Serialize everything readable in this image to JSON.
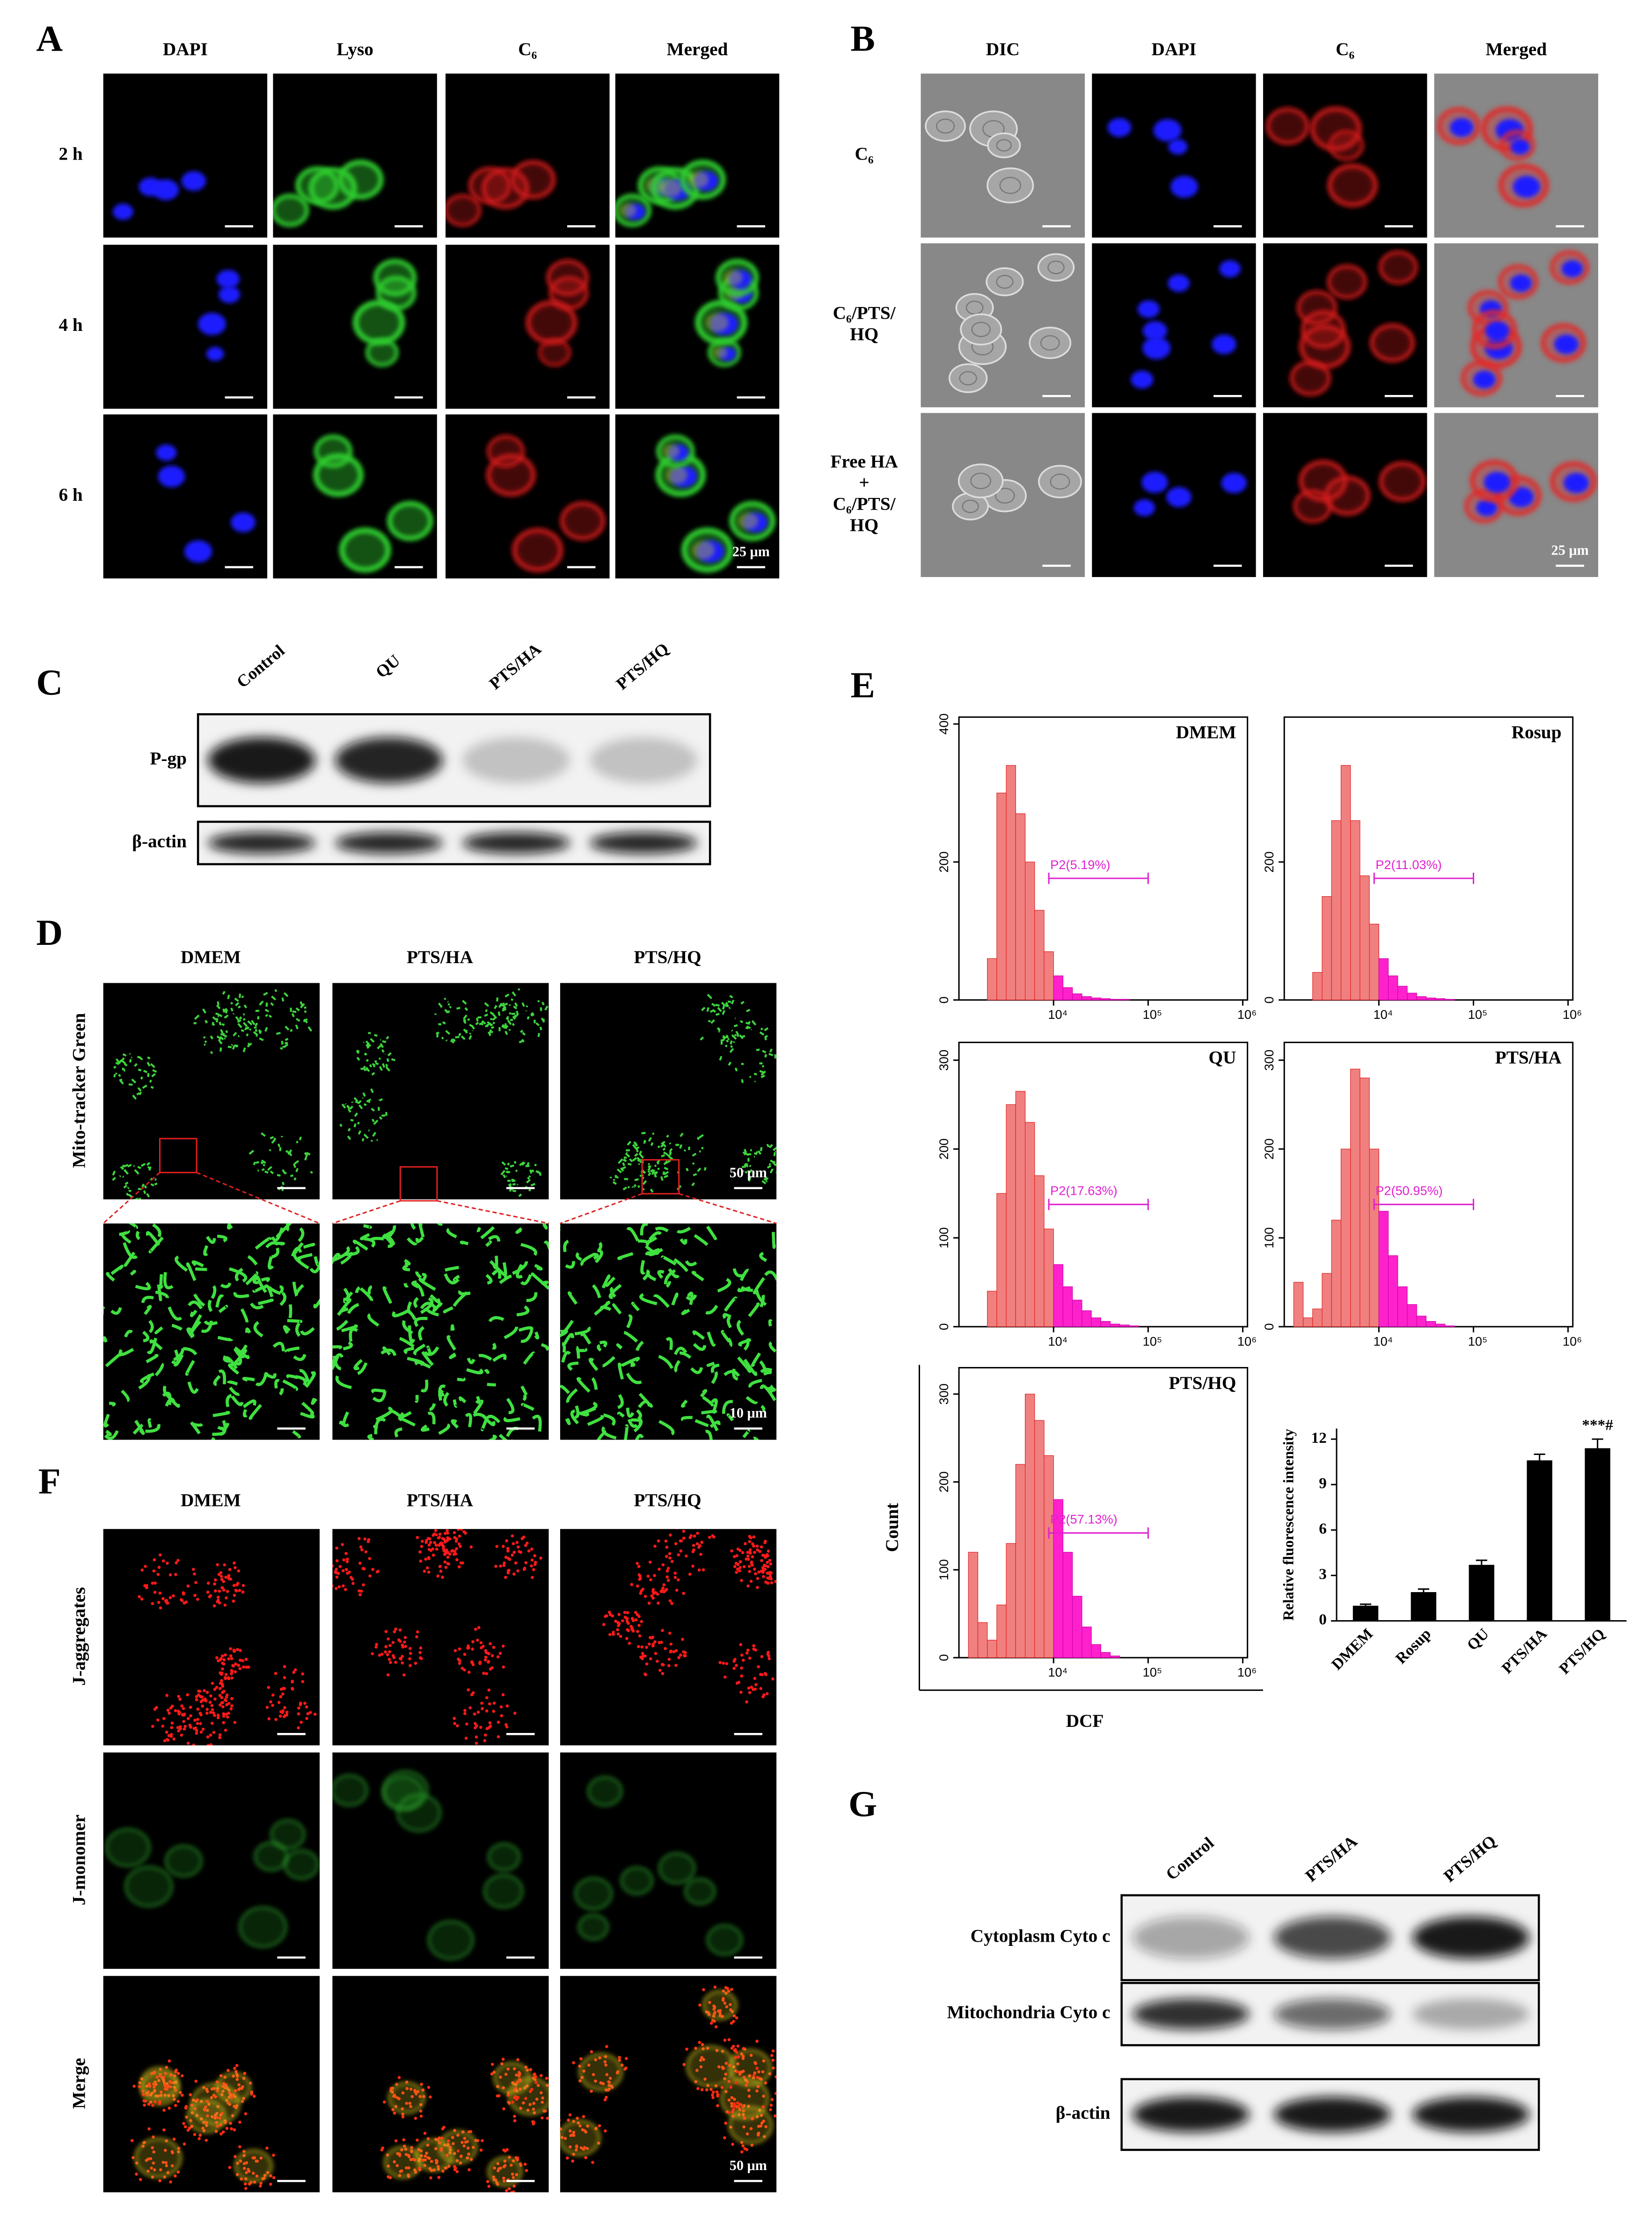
{
  "panel_a": {
    "letter": "A",
    "columns": [
      "DAPI",
      "Lyso",
      "C₆",
      "Merged"
    ],
    "rows": [
      "2 h",
      "4 h",
      "6 h"
    ],
    "scale_bar": "25 μm"
  },
  "panel_b": {
    "letter": "B",
    "columns": [
      "DIC",
      "DAPI",
      "C₆",
      "Merged"
    ],
    "rows": [
      [
        "C₆"
      ],
      [
        "C₆/PTS/",
        "HQ"
      ],
      [
        "Free HA",
        "+",
        "C₆/PTS/",
        "HQ"
      ]
    ],
    "scale_bar": "25 μm"
  },
  "panel_c": {
    "letter": "C",
    "lanes": [
      "Control",
      "QU",
      "PTS/HA",
      "PTS/HQ"
    ],
    "blots": [
      "P-gp",
      "β-actin"
    ]
  },
  "panel_d": {
    "letter": "D",
    "columns": [
      "DMEM",
      "PTS/HA",
      "PTS/HQ"
    ],
    "row_label": "Mito-tracker Green",
    "scale_bars": [
      "50 μm",
      "10 μm"
    ]
  },
  "panel_e": {
    "letter": "E"
  },
  "panel_f": {
    "letter": "F",
    "columns": [
      "DMEM",
      "PTS/HA",
      "PTS/HQ"
    ],
    "rows": [
      "J-aggregates",
      "J-monomer",
      "Merge"
    ],
    "scale_bar": "50 μm"
  },
  "panel_g": {
    "letter": "G",
    "lanes": [
      "Control",
      "PTS/HA",
      "PTS/HQ"
    ],
    "blots": [
      "Cytoplasm Cyto c",
      "Mitochondria Cyto c",
      "β-actin"
    ]
  },
  "chart_data": [
    {
      "type": "histogram",
      "title": "DMEM",
      "color": "#f08080",
      "gate_color": "#ff22cc",
      "bins": [
        3.0,
        3.1,
        3.2,
        3.3,
        3.4,
        3.5,
        3.6,
        3.7,
        3.8,
        3.9,
        4.0,
        4.1,
        4.2,
        4.3,
        4.4,
        4.5,
        4.6,
        4.7,
        4.8,
        4.9,
        5.0
      ],
      "values": [
        0,
        0,
        0,
        60,
        300,
        340,
        270,
        200,
        130,
        70,
        35,
        18,
        9,
        5,
        3,
        2,
        1,
        1,
        0,
        0
      ],
      "gate": {
        "range": [
          3.95,
          5.0
        ],
        "label": "P2(5.19%)"
      },
      "xlim": [
        3.0,
        6.05
      ],
      "xticks": [
        {
          "value": 4,
          "label": "10⁴"
        },
        {
          "value": 5,
          "label": "10⁵"
        },
        {
          "value": 6,
          "label": "10⁶"
        }
      ],
      "ylim": [
        0,
        410
      ],
      "yticks": [
        0,
        200,
        400
      ]
    },
    {
      "type": "histogram",
      "title": "Rosup",
      "color": "#f08080",
      "gate_color": "#ff22cc",
      "bins": [
        3.0,
        3.1,
        3.2,
        3.3,
        3.4,
        3.5,
        3.6,
        3.7,
        3.8,
        3.9,
        4.0,
        4.1,
        4.2,
        4.3,
        4.4,
        4.5,
        4.6,
        4.7,
        4.8,
        4.9,
        5.0
      ],
      "values": [
        0,
        0,
        0,
        40,
        150,
        260,
        340,
        260,
        180,
        110,
        60,
        35,
        20,
        10,
        5,
        3,
        2,
        1,
        0,
        0
      ],
      "gate": {
        "range": [
          3.95,
          5.0
        ],
        "label": "P2(11.03%)"
      },
      "xlim": [
        3.0,
        6.05
      ],
      "xticks": [
        {
          "value": 4,
          "label": "10⁴"
        },
        {
          "value": 5,
          "label": "10⁵"
        },
        {
          "value": 6,
          "label": "10⁶"
        }
      ],
      "ylim": [
        0,
        410
      ],
      "yticks": [
        0,
        200
      ]
    },
    {
      "type": "histogram",
      "title": "QU",
      "color": "#f08080",
      "gate_color": "#ff22cc",
      "bins": [
        3.0,
        3.1,
        3.2,
        3.3,
        3.4,
        3.5,
        3.6,
        3.7,
        3.8,
        3.9,
        4.0,
        4.1,
        4.2,
        4.3,
        4.4,
        4.5,
        4.6,
        4.7,
        4.8,
        4.9,
        5.0
      ],
      "values": [
        0,
        0,
        0,
        40,
        150,
        250,
        265,
        230,
        170,
        110,
        70,
        45,
        30,
        18,
        10,
        6,
        3,
        2,
        1,
        0
      ],
      "gate": {
        "range": [
          3.95,
          5.0
        ],
        "label": "P2(17.63%)"
      },
      "xlim": [
        3.0,
        6.05
      ],
      "xticks": [
        {
          "value": 4,
          "label": "10⁴"
        },
        {
          "value": 5,
          "label": "10⁵"
        },
        {
          "value": 6,
          "label": "10⁶"
        }
      ],
      "ylim": [
        0,
        320
      ],
      "yticks": [
        0,
        100,
        200,
        300
      ]
    },
    {
      "type": "histogram",
      "title": "PTS/HA",
      "color": "#f08080",
      "gate_color": "#ff22cc",
      "bins": [
        3.0,
        3.1,
        3.2,
        3.3,
        3.4,
        3.5,
        3.6,
        3.7,
        3.8,
        3.9,
        4.0,
        4.1,
        4.2,
        4.3,
        4.4,
        4.5,
        4.6,
        4.7,
        4.8,
        4.9,
        5.0
      ],
      "values": [
        0,
        50,
        10,
        20,
        60,
        120,
        200,
        290,
        280,
        200,
        130,
        80,
        45,
        25,
        12,
        6,
        3,
        1,
        0,
        0
      ],
      "gate": {
        "range": [
          3.95,
          5.0
        ],
        "label": "P2(50.95%)"
      },
      "xlim": [
        3.0,
        6.05
      ],
      "xticks": [
        {
          "value": 4,
          "label": "10⁴"
        },
        {
          "value": 5,
          "label": "10⁵"
        },
        {
          "value": 6,
          "label": "10⁶"
        }
      ],
      "ylim": [
        0,
        320
      ],
      "yticks": [
        0,
        100,
        200,
        300
      ]
    },
    {
      "type": "histogram",
      "title": "PTS/HQ",
      "color": "#f08080",
      "gate_color": "#ff22cc",
      "xlabel": "DCF",
      "ylabel": "Count",
      "bins": [
        3.0,
        3.1,
        3.2,
        3.3,
        3.4,
        3.5,
        3.6,
        3.7,
        3.8,
        3.9,
        4.0,
        4.1,
        4.2,
        4.3,
        4.4,
        4.5,
        4.6,
        4.7,
        4.8,
        4.9,
        5.0
      ],
      "values": [
        0,
        120,
        40,
        20,
        60,
        130,
        220,
        300,
        270,
        230,
        180,
        120,
        70,
        35,
        15,
        6,
        2,
        0,
        0,
        0
      ],
      "gate": {
        "range": [
          3.95,
          5.0
        ],
        "label": "P2(57.13%)"
      },
      "xlim": [
        3.0,
        6.05
      ],
      "xticks": [
        {
          "value": 4,
          "label": "10⁴"
        },
        {
          "value": 5,
          "label": "10⁵"
        },
        {
          "value": 6,
          "label": "10⁶"
        }
      ],
      "ylim": [
        0,
        330
      ],
      "yticks": [
        0,
        100,
        200,
        300
      ]
    },
    {
      "type": "bar",
      "ylabel": "Relative fluorescence intensity",
      "color": "#000000",
      "categories": [
        "DMEM",
        "Rosup",
        "QU",
        "PTS/HA",
        "PTS/HQ"
      ],
      "values": [
        1.0,
        1.9,
        3.7,
        10.6,
        11.4
      ],
      "errors": [
        0.1,
        0.2,
        0.3,
        0.4,
        0.6
      ],
      "annotation": {
        "index": 4,
        "text": "***#"
      },
      "ylim": [
        0,
        12.7
      ],
      "yticks": [
        0,
        3,
        6,
        9,
        12
      ]
    }
  ]
}
